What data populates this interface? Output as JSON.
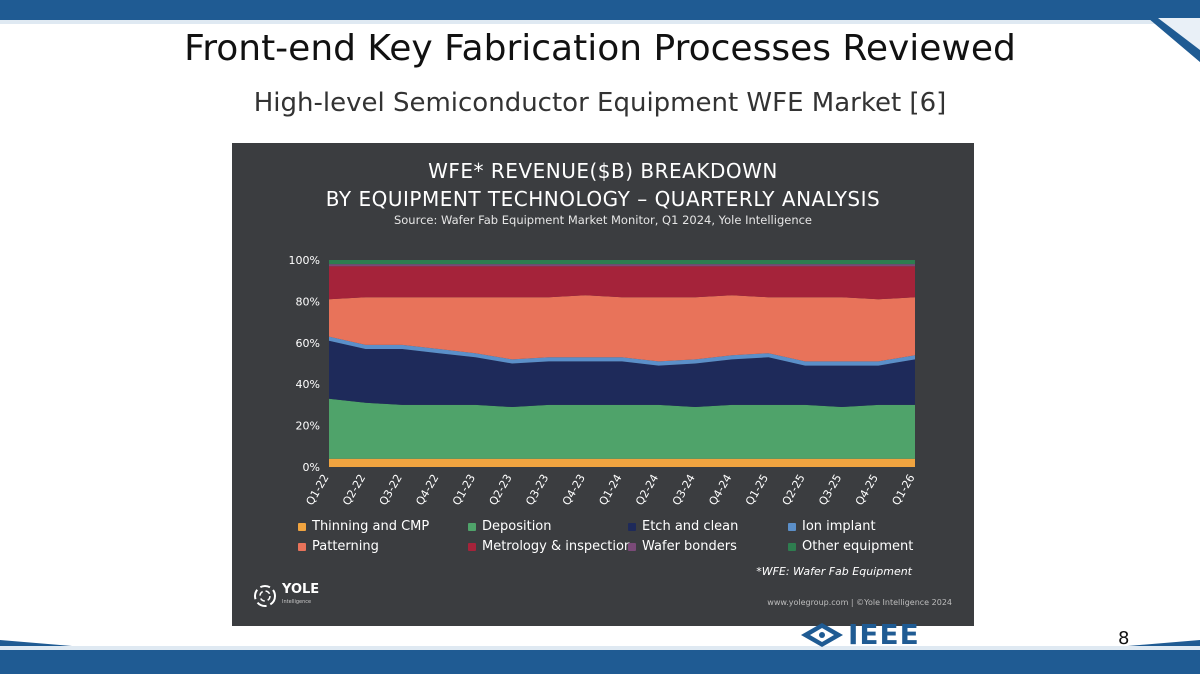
{
  "slide": {
    "title": "Front-end Key Fabrication Processes Reviewed",
    "subtitle": "High-level Semiconductor Equipment WFE Market [6]",
    "page_number": "8",
    "ieee_logo": "IEEE",
    "theme_color": "#1f5b93"
  },
  "panel": {
    "background": "#3b3d40",
    "footnote": "*WFE: Wafer Fab Equipment",
    "credit": "www.yolegroup.com | ©Yole Intelligence 2024",
    "logo_name": "YOLE",
    "logo_sub": "Intelligence"
  },
  "chart_data": {
    "type": "area",
    "stacked": true,
    "title_line1": "WFE* REVENUE($B) BREAKDOWN",
    "title_line2": "BY EQUIPMENT TECHNOLOGY – QUARTERLY ANALYSIS",
    "subtitle": "Source: Wafer Fab Equipment Market Monitor, Q1 2024, Yole Intelligence",
    "x": [
      "Q1-22",
      "Q2-22",
      "Q3-22",
      "Q4-22",
      "Q1-23",
      "Q2-23",
      "Q3-23",
      "Q4-23",
      "Q1-24",
      "Q2-24",
      "Q3-24",
      "Q4-24",
      "Q1-25",
      "Q2-25",
      "Q3-25",
      "Q4-25",
      "Q1-26"
    ],
    "ylim": [
      0,
      100
    ],
    "y_ticks": [
      "0%",
      "20%",
      "40%",
      "60%",
      "80%",
      "100%"
    ],
    "grid": false,
    "legend_position": "bottom",
    "series": [
      {
        "name": "Thinning and CMP",
        "color": "#f0a440",
        "values": [
          4,
          4,
          4,
          4,
          4,
          4,
          4,
          4,
          4,
          4,
          4,
          4,
          4,
          4,
          4,
          4,
          4
        ]
      },
      {
        "name": "Deposition",
        "color": "#4fa36a",
        "values": [
          29,
          27,
          26,
          26,
          26,
          25,
          26,
          26,
          26,
          26,
          25,
          26,
          26,
          26,
          25,
          26,
          26
        ]
      },
      {
        "name": "Etch and clean",
        "color": "#1e2a5a",
        "values": [
          28,
          26,
          27,
          25,
          23,
          21,
          21,
          21,
          21,
          19,
          21,
          22,
          23,
          19,
          20,
          19,
          22
        ]
      },
      {
        "name": "Ion implant",
        "color": "#5b8fc9",
        "values": [
          2,
          2,
          2,
          2,
          2,
          2,
          2,
          2,
          2,
          2,
          2,
          2,
          2,
          2,
          2,
          2,
          2
        ]
      },
      {
        "name": "Patterning",
        "color": "#e8735a",
        "values": [
          18,
          23,
          23,
          25,
          27,
          30,
          29,
          30,
          29,
          31,
          30,
          29,
          27,
          31,
          31,
          30,
          28
        ]
      },
      {
        "name": "Metrology & inspection",
        "color": "#a5233a",
        "values": [
          16,
          15,
          15,
          15,
          15,
          15,
          15,
          14,
          15,
          15,
          15,
          14,
          15,
          15,
          15,
          16,
          15
        ]
      },
      {
        "name": "Wafer bonders",
        "color": "#7a4a78",
        "values": [
          1,
          1,
          1,
          1,
          1,
          1,
          1,
          1,
          1,
          1,
          1,
          1,
          1,
          1,
          1,
          1,
          1
        ]
      },
      {
        "name": "Other equipment",
        "color": "#2e7d4f",
        "values": [
          2,
          2,
          2,
          2,
          2,
          2,
          2,
          2,
          2,
          2,
          2,
          2,
          2,
          2,
          2,
          2,
          2
        ]
      }
    ]
  }
}
